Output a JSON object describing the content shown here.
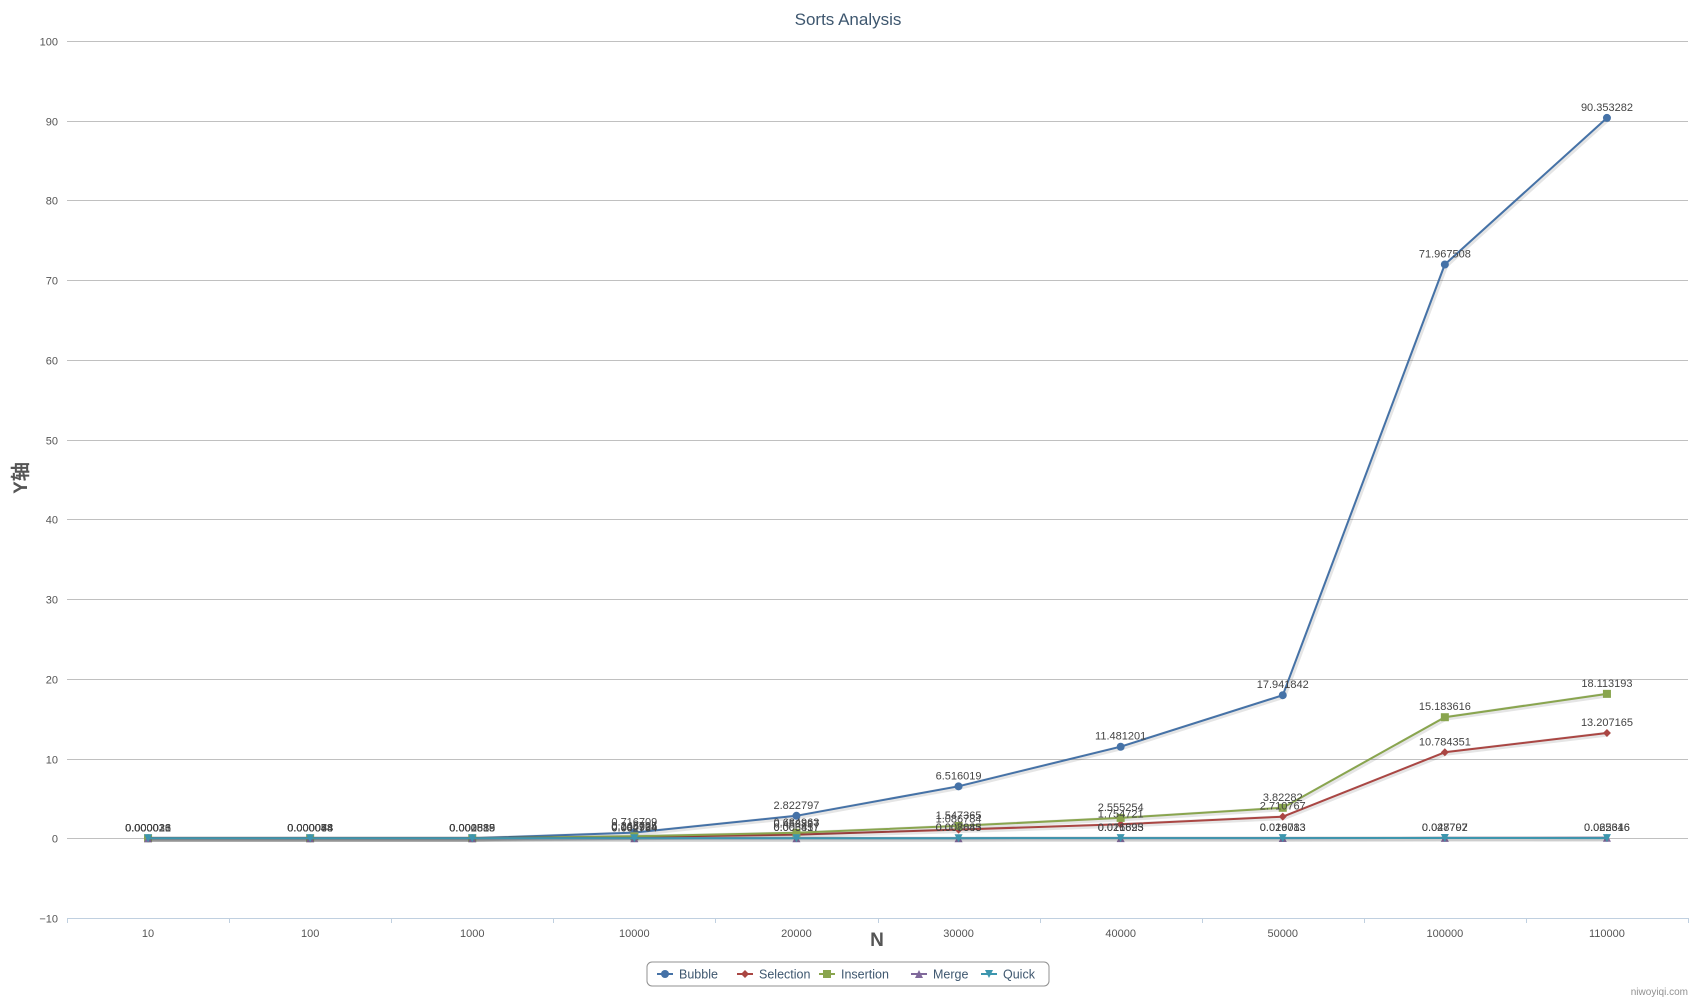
{
  "chart_data": {
    "type": "line",
    "title": "Sorts Analysis",
    "xlabel": "N",
    "ylabel": "Y轴",
    "categories": [
      "10",
      "100",
      "1000",
      "10000",
      "20000",
      "30000",
      "40000",
      "50000",
      "100000",
      "110000"
    ],
    "ylim": [
      -10,
      100
    ],
    "yticks": [
      -10,
      0,
      10,
      20,
      30,
      40,
      50,
      60,
      70,
      80,
      90,
      100
    ],
    "grid": true,
    "legend": "bottom-center",
    "series": [
      {
        "name": "Bubble",
        "color": "#4572a7",
        "marker": "circle",
        "values": [
          2.1e-05,
          8.8e-05,
          0.002839,
          0.716709,
          2.822797,
          6.516019,
          11.481201,
          17.941842,
          71.967508,
          90.353282
        ],
        "labels": [
          "0.000021",
          "0.000088",
          "0.002839",
          "0.716709",
          "2.822797",
          "6.516019",
          "11.481201",
          "17.941842",
          "71.967508",
          "90.353282"
        ]
      },
      {
        "name": "Selection",
        "color": "#aa4643",
        "marker": "diamond",
        "values": [
          1.6e-05,
          5.4e-05,
          0.001888,
          0.166924,
          0.458837,
          1.086784,
          1.754721,
          2.710767,
          10.784351,
          13.207165
        ],
        "labels": [
          "0.000016",
          "0.000054",
          "0.001888",
          "0.166924",
          "0.458837",
          "1.086784",
          "1.754721",
          "2.710767",
          "10.784351",
          "13.207165"
        ]
      },
      {
        "name": "Insertion",
        "color": "#89a54e",
        "marker": "square",
        "values": [
          1.3e-05,
          4.8e-05,
          0.001589,
          0.245705,
          0.684963,
          1.547365,
          2.555254,
          3.82282,
          15.183616,
          18.113193
        ],
        "labels": [
          "0.000013",
          "0.000048",
          "0.001589",
          "0.245705",
          "0.684963",
          "1.547365",
          "2.555254",
          "3.82282",
          "15.183616",
          "18.113193"
        ]
      },
      {
        "name": "Merge",
        "color": "#80699b",
        "marker": "triangle",
        "values": [
          3.6e-05,
          7.8e-05,
          0.000619,
          0.004964,
          0.006457,
          0.008845,
          0.021625,
          0.026783,
          0.047792,
          0.062646
        ],
        "labels": [
          "0.000036",
          "0.000078",
          "0.000619",
          "0.004964",
          "0.006457",
          "0.008845",
          "0.021625",
          "0.026783",
          "0.047792",
          "0.062646"
        ]
      },
      {
        "name": "Quick",
        "color": "#3d96ae",
        "marker": "triangle-down",
        "values": [
          2.6e-05,
          4.4e-05,
          0.000535,
          0.002734,
          0.005817,
          0.007083,
          0.016893,
          0.019013,
          0.028707,
          0.025316
        ],
        "labels": [
          "0.000026",
          "0.000044",
          "0.000535",
          "0.002734",
          "0.005817",
          "0.007083",
          "0.016893",
          "0.019013",
          "0.028707",
          "0.025316"
        ]
      }
    ],
    "credit": "niwoyiqi.com"
  }
}
